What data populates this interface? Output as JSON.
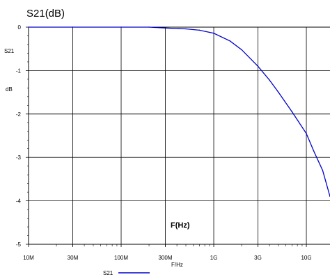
{
  "chart_data": {
    "type": "line",
    "title": "S21(dB)",
    "ylabel_top": "S21",
    "ylabel_unit": "dB",
    "xlabel_inner": "F(Hz)",
    "xlabel_bottom": "F/Hz",
    "x_scale": "log",
    "xlim": [
      10000000,
      18000000000
    ],
    "ylim": [
      -5,
      0
    ],
    "grid": true,
    "legend": "bottom-center",
    "x_ticks": [
      {
        "label": "10M",
        "value": 10000000
      },
      {
        "label": "30M",
        "value": 30000000
      },
      {
        "label": "100M",
        "value": 100000000
      },
      {
        "label": "300M",
        "value": 300000000
      },
      {
        "label": "1G",
        "value": 1000000000
      },
      {
        "label": "3G",
        "value": 3000000000
      },
      {
        "label": "10G",
        "value": 10000000000
      }
    ],
    "y_ticks": [
      {
        "label": "0",
        "value": 0
      },
      {
        "label": "-1",
        "value": -1
      },
      {
        "label": "-2",
        "value": -2
      },
      {
        "label": "-3",
        "value": -3
      },
      {
        "label": "-4",
        "value": -4
      },
      {
        "label": "-5",
        "value": -5
      }
    ],
    "series": [
      {
        "name": "S21",
        "color": "#0000cc",
        "x": [
          10000000,
          30000000,
          100000000,
          200000000,
          300000000,
          500000000,
          700000000,
          1000000000,
          1500000000,
          2000000000,
          3000000000,
          4000000000,
          5000000000,
          7000000000,
          10000000000,
          12000000000,
          15000000000,
          18000000000
        ],
        "y": [
          0,
          0,
          0,
          0,
          -0.02,
          -0.04,
          -0.07,
          -0.14,
          -0.32,
          -0.52,
          -0.9,
          -1.22,
          -1.5,
          -1.95,
          -2.45,
          -2.85,
          -3.3,
          -3.9
        ]
      }
    ]
  }
}
